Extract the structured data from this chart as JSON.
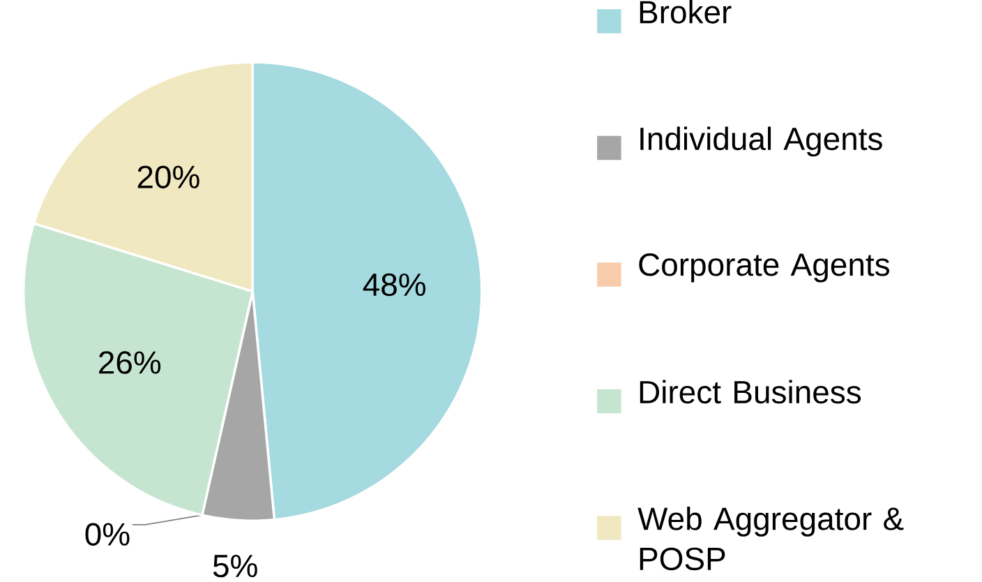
{
  "chart_data": {
    "type": "pie",
    "categories": [
      "Broker",
      "Individual Agents",
      "Corporate Agents",
      "Direct Business",
      "Web Aggregator & POSP"
    ],
    "values": [
      48,
      5,
      0,
      26,
      20
    ],
    "value_labels": [
      "48%",
      "5%",
      "0%",
      "26%",
      "20%"
    ],
    "colors": [
      "#a5dae0",
      "#a6a6a6",
      "#f8cbad",
      "#c6e5d0",
      "#f0e8c0"
    ],
    "legend": "right"
  }
}
